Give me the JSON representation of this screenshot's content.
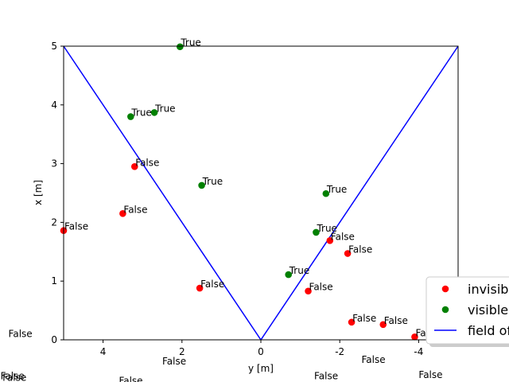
{
  "chart_data": {
    "type": "scatter",
    "xlabel": "y [m]",
    "ylabel": "x [m]",
    "xlim": [
      5,
      -5
    ],
    "ylim": [
      0,
      5
    ],
    "x_ticks": [
      4,
      2,
      0,
      -2,
      -4
    ],
    "x_tick_labels": [
      "4",
      "2",
      "0",
      "-2",
      "-4"
    ],
    "y_ticks": [
      0,
      1,
      2,
      3,
      4,
      5
    ],
    "y_tick_labels": [
      "0",
      "1",
      "2",
      "3",
      "4",
      "5"
    ],
    "grid": false,
    "legend_position": "bottom-right",
    "series": [
      {
        "name": "invisible",
        "color": "#ff0000",
        "marker": "circle",
        "points": [
          {
            "x": 3.2,
            "y": 2.95,
            "label": "False"
          },
          {
            "x": 3.5,
            "y": 2.15,
            "label": "False"
          },
          {
            "x": 5.0,
            "y": 1.86,
            "label": "False"
          },
          {
            "x": 1.55,
            "y": 0.88,
            "label": "False"
          },
          {
            "x": -1.75,
            "y": 1.69,
            "label": "False"
          },
          {
            "x": -2.2,
            "y": 1.47,
            "label": "False"
          },
          {
            "x": -1.2,
            "y": 0.83,
            "label": "False"
          },
          {
            "x": -2.3,
            "y": 0.3,
            "label": "False"
          },
          {
            "x": -3.1,
            "y": 0.26,
            "label": "False"
          },
          {
            "x": -3.9,
            "y": 0.05,
            "label": "Fa"
          }
        ]
      },
      {
        "name": "visible",
        "color": "#008000",
        "marker": "circle",
        "points": [
          {
            "x": 2.05,
            "y": 4.99,
            "label": "True"
          },
          {
            "x": 3.3,
            "y": 3.8,
            "label": "True"
          },
          {
            "x": 2.7,
            "y": 3.87,
            "label": "True"
          },
          {
            "x": 1.5,
            "y": 2.63,
            "label": "True"
          },
          {
            "x": -1.65,
            "y": 2.49,
            "label": "True"
          },
          {
            "x": -1.4,
            "y": 1.83,
            "label": "True"
          },
          {
            "x": -0.7,
            "y": 1.11,
            "label": "True"
          }
        ]
      },
      {
        "name": "field of",
        "color": "#0000ff",
        "type": "line",
        "x": [
          5,
          0,
          -5
        ],
        "y": [
          5,
          0,
          5
        ]
      }
    ],
    "outside_labels": [
      {
        "x": 6.4,
        "y": 0.05,
        "text": "False"
      },
      {
        "x": 2.5,
        "y": -0.42,
        "text": "False"
      },
      {
        "x": -2.55,
        "y": -0.39,
        "text": "False"
      },
      {
        "x": -4.0,
        "y": -0.65,
        "text": "False"
      },
      {
        "x": -1.35,
        "y": -0.67,
        "text": "False"
      },
      {
        "x": 6.6,
        "y": -0.67,
        "text": "False"
      },
      {
        "x": 6.55,
        "y": -0.7,
        "text": "False"
      },
      {
        "x": 3.6,
        "y": -0.75,
        "text": "False"
      }
    ]
  }
}
